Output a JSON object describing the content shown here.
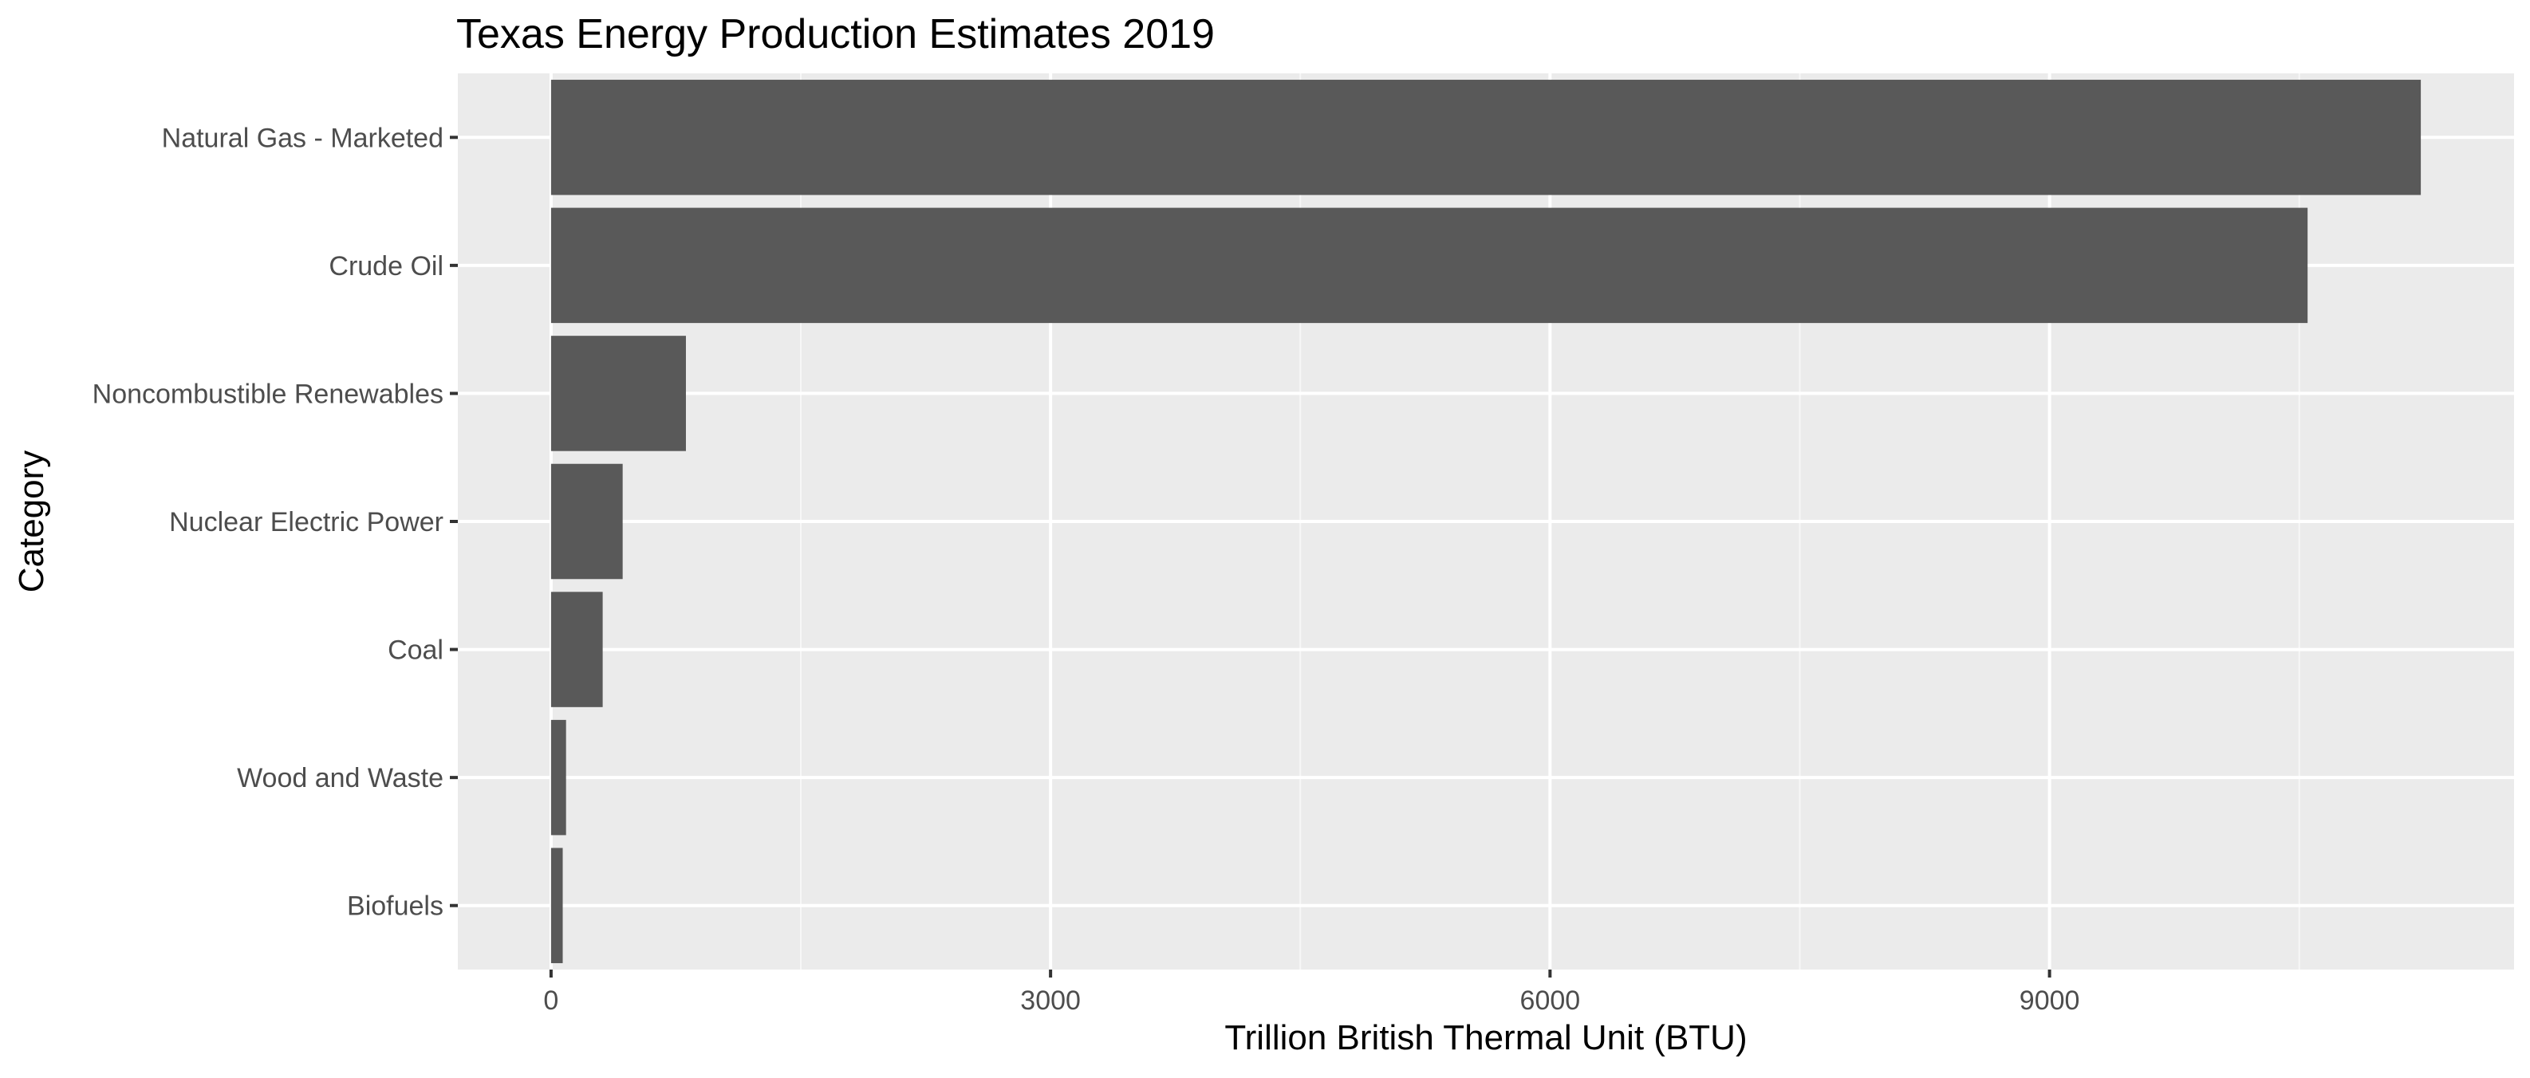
{
  "colors": {
    "page_background": "#ffffff",
    "panel_background": "#ebebeb",
    "grid_major": "#ffffff",
    "grid_minor": "#f7f7f7",
    "bar_fill": "#595959",
    "tick_mark": "#333333",
    "tick_label": "#4d4d4d",
    "text": "#000000"
  },
  "chart_data": {
    "type": "bar",
    "orientation": "horizontal",
    "title": "Texas Energy Production Estimates 2019",
    "xlabel": "Trillion British Thermal Unit (BTU)",
    "ylabel": "Category",
    "categories": [
      "Natural Gas - Marketed",
      "Crude Oil",
      "Noncombustible Renewables",
      "Nuclear Electric Power",
      "Coal",
      "Wood and Waste",
      "Biofuels"
    ],
    "values": [
      11230,
      10550,
      810,
      430,
      310,
      90,
      70
    ],
    "xlim": [
      -560,
      11790
    ],
    "x_ticks": [
      0,
      3000,
      6000,
      9000
    ],
    "x_tick_labels": [
      "0",
      "3000",
      "6000",
      "9000"
    ],
    "x_minor_ticks": [
      1500,
      4500,
      7500,
      10500
    ],
    "grid": true,
    "legend": "none"
  }
}
